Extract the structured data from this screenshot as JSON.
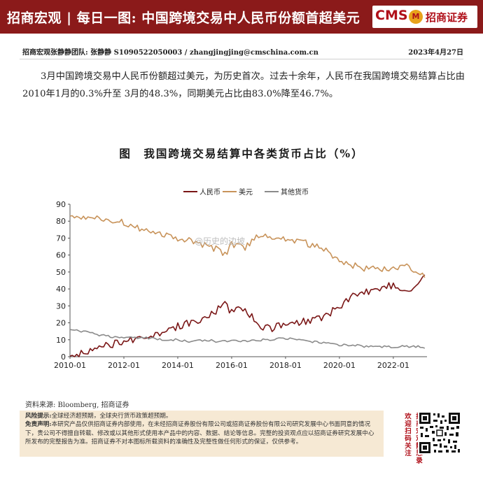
{
  "header": {
    "title": "招商宏观 | 每日一图: 中国跨境交易中人民币份额首超美元",
    "logo_cms": "CMS",
    "logo_mark": "M",
    "logo_name": "招商证券"
  },
  "author_line": {
    "team": "招商宏观张静静团队: 张静静 S1090522050003 / zhangjingjing@cmschina.com.cn",
    "date": "2023年4月27日"
  },
  "summary": "3月中国跨境交易中人民币份额超过美元，为历史首次。过去十余年，人民币在我国跨境交易结算占比由2010年1月的0.3%升至 3月的48.3%，同期美元占比由83.0%降至46.7%。",
  "chart_data": {
    "type": "line",
    "title": "图　我国跨境交易结算中各类货币占比（%）",
    "legend_position": "top-center",
    "grid": false,
    "ylim": [
      0,
      90
    ],
    "yticks": [
      0,
      10,
      20,
      30,
      40,
      50,
      60,
      70,
      80,
      90
    ],
    "xlim": [
      "2010-01",
      "2023-04"
    ],
    "xticks": [
      "2010-01",
      "2012-01",
      "2014-01",
      "2016-01",
      "2018-01",
      "2020-01",
      "2022-01"
    ],
    "x": [
      "2010-01",
      "2010-07",
      "2011-01",
      "2011-07",
      "2012-01",
      "2012-07",
      "2013-01",
      "2013-07",
      "2014-01",
      "2014-07",
      "2015-01",
      "2015-07",
      "2015-10",
      "2016-01",
      "2016-07",
      "2017-01",
      "2017-07",
      "2018-01",
      "2018-07",
      "2019-01",
      "2019-07",
      "2020-01",
      "2020-07",
      "2021-01",
      "2021-07",
      "2022-01",
      "2022-07",
      "2023-01",
      "2023-03"
    ],
    "series": [
      {
        "name": "人民币",
        "color": "#7a1616",
        "values": [
          0.3,
          2,
          5,
          7,
          9,
          11,
          12,
          14,
          18,
          20,
          23,
          28,
          31,
          26,
          29,
          18,
          17,
          19,
          20,
          22,
          24,
          30,
          36,
          38,
          41,
          42,
          40,
          43,
          48.3
        ]
      },
      {
        "name": "美元",
        "color": "#c8935a",
        "values": [
          83,
          83,
          82,
          80,
          79,
          76,
          74,
          72,
          70,
          68,
          66,
          63,
          60,
          66,
          64,
          72,
          71,
          70,
          68,
          66,
          63,
          56,
          54,
          52,
          51,
          52,
          53,
          50,
          46.7
        ]
      },
      {
        "name": "其他货币",
        "color": "#8a8a8a",
        "values": [
          16,
          15,
          13,
          12,
          11,
          11,
          11,
          10,
          10,
          9,
          10,
          9,
          9,
          10,
          9,
          10,
          10,
          11,
          10,
          9,
          8,
          7,
          7,
          6,
          6,
          6,
          6,
          6,
          5.0
        ]
      }
    ]
  },
  "watermark": "@历史的边坡",
  "source": "资料来源: Bloomberg, 招商证券",
  "footer": {
    "risk_label": "风险提示:",
    "risk_text": "全球经济超预期，全球央行货币政策超预期。",
    "disclaimer_label": "免责声明:",
    "disclaimer_text": "本研究产品仅供招商证券内部使用，在未经招商证券股份有限公司或招商证券股份有限公司研究发展中心书面同意的情况下，贵公司不得擅自转载、修改或以其他形式使用本产品中的内容、数据、结论等信息。完整的投资观点应以招商证券研究发展中心所发布的完整报告为准。招商证券不对本图标所载资料的准确性及完整性做任何形式的保证，仅供参考。"
  },
  "follow": {
    "line1": "欢迎扫码关注",
    "line2": "招商宏观静思录"
  }
}
